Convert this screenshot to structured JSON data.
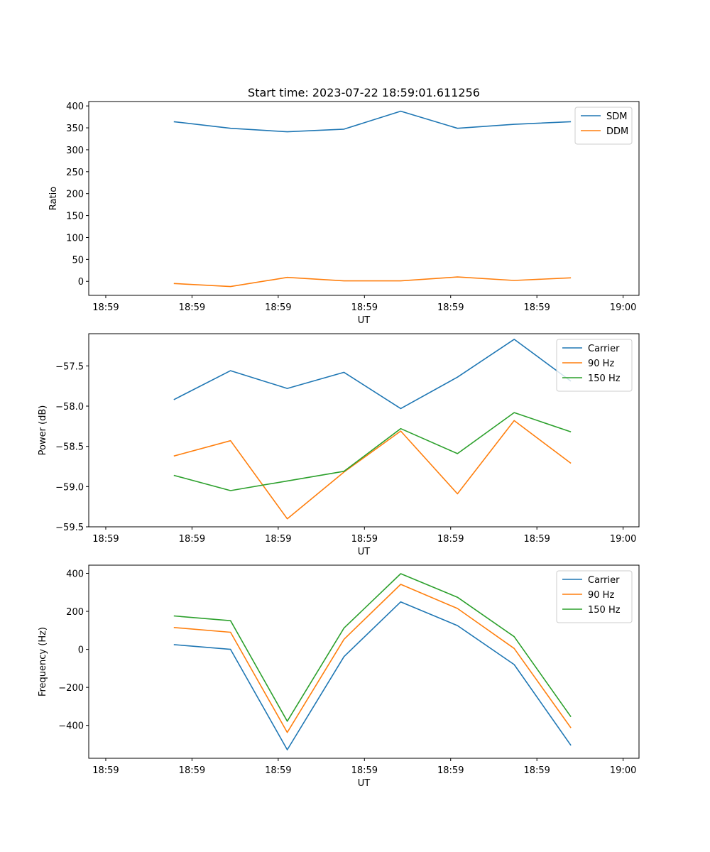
{
  "chart_data": [
    {
      "type": "line",
      "title": "Start time: 2023-07-22 18:59:01.611256",
      "xlabel": "UT",
      "ylabel": "Ratio",
      "x": [
        1,
        2,
        3,
        4,
        5,
        6,
        7,
        8
      ],
      "xlim": [
        -0.5,
        9.2
      ],
      "x_ticks": [
        {
          "x": -0.2,
          "label": "18:59"
        },
        {
          "x": 1.32,
          "label": "18:59"
        },
        {
          "x": 2.84,
          "label": "18:59"
        },
        {
          "x": 4.36,
          "label": "18:59"
        },
        {
          "x": 5.88,
          "label": "18:59"
        },
        {
          "x": 7.4,
          "label": "18:59"
        },
        {
          "x": 8.92,
          "label": "19:00"
        }
      ],
      "ylim": [
        -32,
        410
      ],
      "y_ticks": [
        0,
        50,
        100,
        150,
        200,
        250,
        300,
        350,
        400
      ],
      "y_tick_labels": [
        "0",
        "50",
        "100",
        "150",
        "200",
        "250",
        "300",
        "350",
        "400"
      ],
      "legend": "top-right",
      "series": [
        {
          "name": "SDM",
          "color": "#1f77b4",
          "values": [
            364,
            349,
            341,
            347,
            388,
            349,
            358,
            364
          ]
        },
        {
          "name": "DDM",
          "color": "#ff7f0e",
          "values": [
            -5,
            -12,
            9,
            1,
            1,
            10,
            2,
            8
          ]
        }
      ]
    },
    {
      "type": "line",
      "title": "",
      "xlabel": "UT",
      "ylabel": "Power (dB)",
      "x": [
        1,
        2,
        3,
        4,
        5,
        6,
        7,
        8
      ],
      "xlim": [
        -0.5,
        9.2
      ],
      "x_ticks": [
        {
          "x": -0.2,
          "label": "18:59"
        },
        {
          "x": 1.32,
          "label": "18:59"
        },
        {
          "x": 2.84,
          "label": "18:59"
        },
        {
          "x": 4.36,
          "label": "18:59"
        },
        {
          "x": 5.88,
          "label": "18:59"
        },
        {
          "x": 7.4,
          "label": "18:59"
        },
        {
          "x": 8.92,
          "label": "19:00"
        }
      ],
      "ylim": [
        -59.5,
        -57.1
      ],
      "y_ticks": [
        -59.5,
        -59.0,
        -58.5,
        -58.0,
        -57.5
      ],
      "y_tick_labels": [
        "−59.5",
        "−59.0",
        "−58.5",
        "−58.0",
        "−57.5"
      ],
      "legend": "top-right",
      "series": [
        {
          "name": "Carrier",
          "color": "#1f77b4",
          "values": [
            -57.92,
            -57.56,
            -57.78,
            -57.58,
            -58.03,
            -57.64,
            -57.17,
            -57.69
          ]
        },
        {
          "name": "90 Hz",
          "color": "#ff7f0e",
          "values": [
            -58.62,
            -58.43,
            -59.4,
            -58.82,
            -58.31,
            -59.09,
            -58.18,
            -58.71
          ]
        },
        {
          "name": "150 Hz",
          "color": "#2ca02c",
          "values": [
            -58.86,
            -59.05,
            -58.93,
            -58.81,
            -58.28,
            -58.59,
            -58.08,
            -58.32
          ]
        }
      ]
    },
    {
      "type": "line",
      "title": "",
      "xlabel": "UT",
      "ylabel": "Frequency (Hz)",
      "x": [
        1,
        2,
        3,
        4,
        5,
        6,
        7,
        8
      ],
      "xlim": [
        -0.5,
        9.2
      ],
      "x_ticks": [
        {
          "x": -0.2,
          "label": "18:59"
        },
        {
          "x": 1.32,
          "label": "18:59"
        },
        {
          "x": 2.84,
          "label": "18:59"
        },
        {
          "x": 4.36,
          "label": "18:59"
        },
        {
          "x": 5.88,
          "label": "18:59"
        },
        {
          "x": 7.4,
          "label": "18:59"
        },
        {
          "x": 8.92,
          "label": "19:00"
        }
      ],
      "ylim": [
        -573,
        443
      ],
      "y_ticks": [
        -400,
        -200,
        0,
        200,
        400
      ],
      "y_tick_labels": [
        "−400",
        "−200",
        "0",
        "200",
        "400"
      ],
      "legend": "top-right",
      "series": [
        {
          "name": "Carrier",
          "color": "#1f77b4",
          "values": [
            25,
            0,
            -528,
            -38,
            250,
            125,
            -80,
            -505
          ]
        },
        {
          "name": "90 Hz",
          "color": "#ff7f0e",
          "values": [
            115,
            90,
            -437,
            53,
            342,
            215,
            5,
            -413
          ]
        },
        {
          "name": "150 Hz",
          "color": "#2ca02c",
          "values": [
            176,
            151,
            -378,
            112,
            398,
            274,
            67,
            -355
          ]
        }
      ]
    }
  ]
}
